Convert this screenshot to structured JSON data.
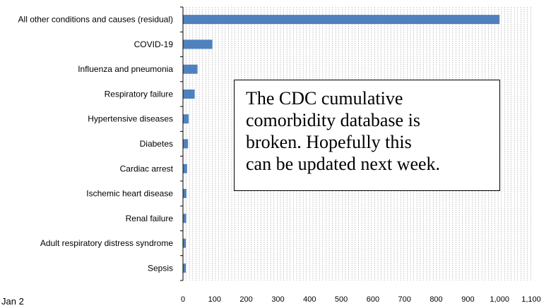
{
  "chart_data": {
    "type": "bar",
    "orientation": "horizontal",
    "categories": [
      "All other conditions and causes (residual)",
      "COVID-19",
      "Influenza and pneumonia",
      "Respiratory failure",
      "Hypertensive diseases",
      "Diabetes",
      "Cardiac arrest",
      "Ischemic heart disease",
      "Renal failure",
      "Adult respiratory distress syndrome",
      "Sepsis"
    ],
    "values": [
      1000,
      93,
      46,
      37,
      18,
      16,
      13,
      11,
      10,
      9,
      9
    ],
    "xlim": [
      0,
      1100
    ],
    "x_ticks": [
      0,
      100,
      200,
      300,
      400,
      500,
      600,
      700,
      800,
      900,
      1000,
      1100
    ],
    "grid": "vertical dashed",
    "legend": "none",
    "bar_color": "#4F81BD"
  },
  "corner_label": "Jan 2",
  "note": {
    "lines": [
      "The CDC cumulative",
      "comorbidity database is",
      "broken. Hopefully this",
      "can be updated next week."
    ]
  }
}
